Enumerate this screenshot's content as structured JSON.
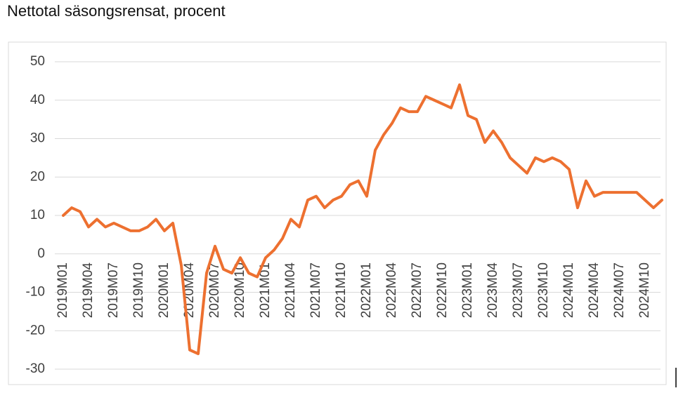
{
  "chart_data": {
    "type": "line",
    "title": "Nettotal säsongsrensat, procent",
    "categories": [
      "2019M01",
      null,
      null,
      "2019M04",
      null,
      null,
      "2019M07",
      null,
      null,
      "2019M10",
      null,
      null,
      "2020M01",
      null,
      null,
      "2020M04",
      null,
      null,
      "2020M07",
      null,
      null,
      "2020M10",
      null,
      null,
      "2021M01",
      null,
      null,
      "2021M04",
      null,
      null,
      "2021M07",
      null,
      null,
      "2021M10",
      null,
      null,
      "2022M01",
      null,
      null,
      "2022M04",
      null,
      null,
      "2022M07",
      null,
      null,
      "2022M10",
      null,
      null,
      "2023M01",
      null,
      null,
      "2023M04",
      null,
      null,
      "2023M07",
      null,
      null,
      "2023M10",
      null,
      null,
      "2024M01",
      null,
      null,
      "2024M04",
      null,
      null,
      "2024M07",
      null,
      null,
      "2024M10",
      null,
      null
    ],
    "series": [
      {
        "name": "Nettotal",
        "color": "#ed7030",
        "values": [
          10,
          12,
          11,
          7,
          9,
          7,
          8,
          7,
          6,
          6,
          7,
          9,
          6,
          8,
          -3,
          -25,
          -26,
          -5,
          2,
          -4,
          -5,
          -1,
          -5,
          -6,
          -1,
          1,
          4,
          9,
          7,
          14,
          15,
          12,
          14,
          15,
          18,
          19,
          15,
          27,
          31,
          34,
          38,
          37,
          37,
          41,
          40,
          39,
          38,
          44,
          36,
          35,
          29,
          32,
          29,
          25,
          23,
          21,
          25,
          24,
          25,
          24,
          22,
          12,
          19,
          15,
          16,
          16,
          16,
          16,
          16,
          14,
          12,
          14
        ]
      }
    ],
    "ylim": [
      -30,
      50
    ],
    "yticks": [
      -30,
      -20,
      -10,
      0,
      10,
      20,
      30,
      40,
      50
    ],
    "grid": true
  }
}
